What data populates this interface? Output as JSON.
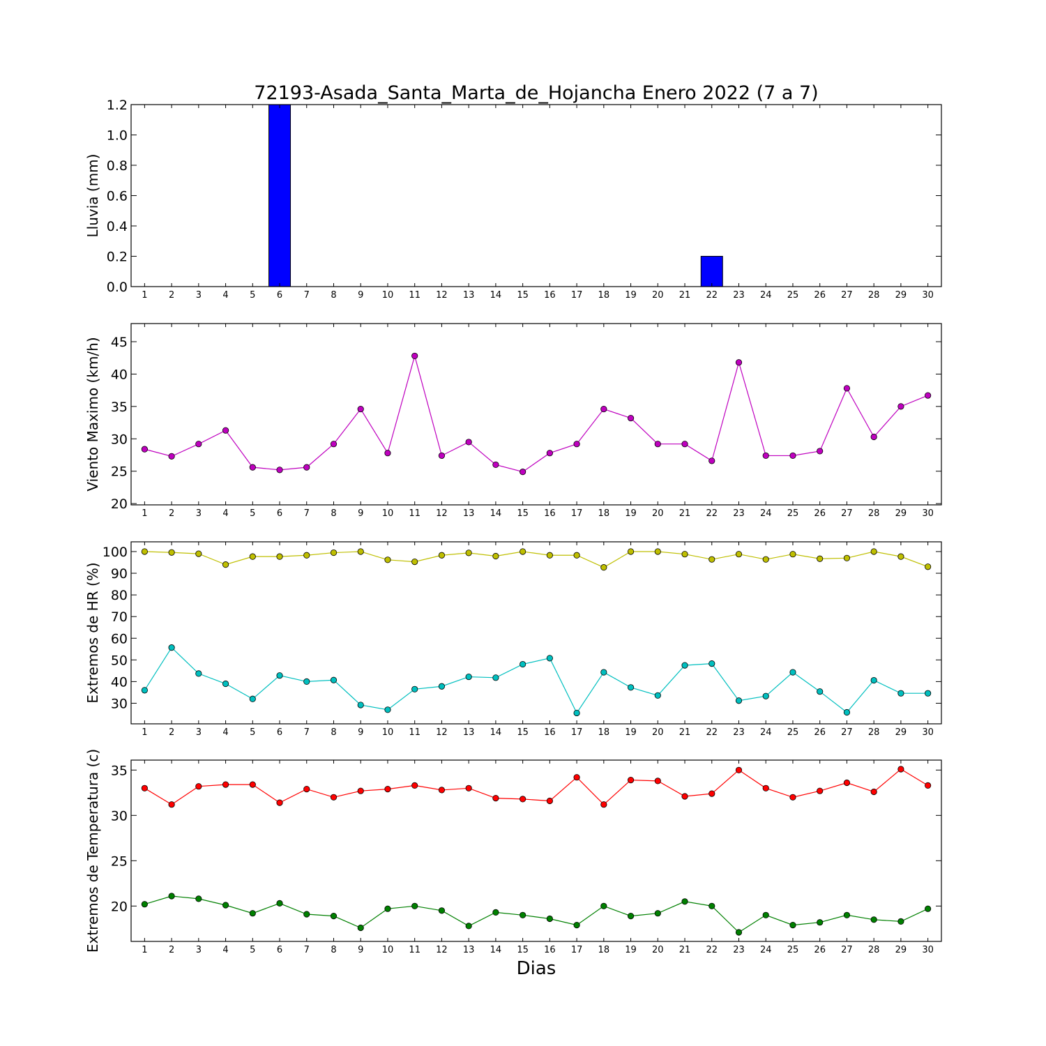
{
  "title": "72193-Asada_Santa_Marta_de_Hojancha Enero 2022  (7 a 7)",
  "xlabel": "Dias",
  "chart_data": [
    {
      "type": "bar",
      "ylabel": "Lluvia (mm)",
      "x": [
        1,
        2,
        3,
        4,
        5,
        6,
        7,
        8,
        9,
        10,
        11,
        12,
        13,
        14,
        15,
        16,
        17,
        18,
        19,
        20,
        21,
        22,
        23,
        24,
        25,
        26,
        27,
        28,
        29,
        30
      ],
      "xlim": [
        0.5,
        30.5
      ],
      "ylim": [
        0,
        1.2
      ],
      "yticks": [
        "0.0",
        "0.2",
        "0.4",
        "0.6",
        "0.8",
        "1.0",
        "1.2"
      ],
      "grid": false,
      "series": [
        {
          "color": "#0000ff",
          "values": [
            0,
            0,
            0,
            0,
            0,
            1.2,
            0,
            0,
            0,
            0,
            0,
            0,
            0,
            0,
            0,
            0,
            0,
            0,
            0,
            0,
            0,
            0.2,
            0,
            0,
            0,
            0,
            0,
            0,
            0,
            0
          ]
        }
      ]
    },
    {
      "type": "line",
      "ylabel": "Viento Maximo (km/h)",
      "x": [
        1,
        2,
        3,
        4,
        5,
        6,
        7,
        8,
        9,
        10,
        11,
        12,
        13,
        14,
        15,
        16,
        17,
        18,
        19,
        20,
        21,
        22,
        23,
        24,
        25,
        26,
        27,
        28,
        29,
        30
      ],
      "xlim": [
        0.5,
        30.5
      ],
      "ylim": [
        19.8,
        47.8
      ],
      "yticks": [
        "20",
        "25",
        "30",
        "35",
        "40",
        "45"
      ],
      "grid": false,
      "series": [
        {
          "color": "#bf00bf",
          "values": [
            28.4,
            27.3,
            29.2,
            31.3,
            25.6,
            25.2,
            25.6,
            29.2,
            34.6,
            27.8,
            42.8,
            27.4,
            29.5,
            26.0,
            24.9,
            27.8,
            29.2,
            34.6,
            33.2,
            29.2,
            29.2,
            26.6,
            41.8,
            27.4,
            27.4,
            28.1,
            37.8,
            30.3,
            35.0,
            36.7
          ]
        }
      ]
    },
    {
      "type": "line",
      "ylabel": "Extremos de HR (%)",
      "x": [
        1,
        2,
        3,
        4,
        5,
        6,
        7,
        8,
        9,
        10,
        11,
        12,
        13,
        14,
        15,
        16,
        17,
        18,
        19,
        20,
        21,
        22,
        23,
        24,
        25,
        26,
        27,
        28,
        29,
        30
      ],
      "xlim": [
        0.5,
        30.5
      ],
      "ylim": [
        20.5,
        104.5
      ],
      "yticks": [
        "30",
        "40",
        "50",
        "60",
        "70",
        "80",
        "90",
        "100"
      ],
      "grid": false,
      "series": [
        {
          "color": "#bfbf00",
          "values": [
            100,
            99.6,
            99,
            94,
            97.7,
            97.7,
            98.3,
            99.5,
            100,
            96.2,
            95.3,
            98.3,
            99.4,
            97.9,
            100,
            98.3,
            98.3,
            92.7,
            100,
            100,
            98.8,
            96.4,
            98.8,
            96.4,
            98.8,
            96.7,
            97,
            100,
            97.7,
            93
          ]
        },
        {
          "color": "#00bfbf",
          "values": [
            36,
            55.7,
            43.7,
            39,
            32,
            42.8,
            40,
            40.7,
            29.2,
            27,
            36.5,
            37.8,
            42.2,
            41.8,
            48,
            50.8,
            25.5,
            44.3,
            37.3,
            33.6,
            47.5,
            48.3,
            31.2,
            33.3,
            44.3,
            35.4,
            25.8,
            40.6,
            34.6,
            34.6
          ]
        }
      ]
    },
    {
      "type": "line",
      "ylabel": "Extremos de Temperatura (c)",
      "x": [
        1,
        2,
        3,
        4,
        5,
        6,
        7,
        8,
        9,
        10,
        11,
        12,
        13,
        14,
        15,
        16,
        17,
        18,
        19,
        20,
        21,
        22,
        23,
        24,
        25,
        26,
        27,
        28,
        29,
        30
      ],
      "xlim": [
        0.5,
        30.5
      ],
      "ylim": [
        16.1,
        36.1
      ],
      "yticks": [
        "20",
        "25",
        "30",
        "35"
      ],
      "grid": false,
      "series": [
        {
          "color": "#ff0000",
          "values": [
            33.0,
            31.2,
            33.2,
            33.4,
            33.4,
            31.4,
            32.9,
            32.0,
            32.7,
            32.9,
            33.3,
            32.8,
            33.0,
            31.9,
            31.8,
            31.6,
            34.2,
            31.2,
            33.9,
            33.8,
            32.1,
            32.4,
            35.0,
            33.0,
            32.0,
            32.7,
            33.6,
            32.6,
            35.1,
            33.3
          ]
        },
        {
          "color": "#008000",
          "values": [
            20.2,
            21.1,
            20.8,
            20.1,
            19.2,
            20.3,
            19.1,
            18.9,
            17.6,
            19.7,
            20.0,
            19.5,
            17.8,
            19.3,
            19.0,
            18.6,
            17.9,
            20.0,
            18.9,
            19.2,
            20.5,
            20.0,
            17.1,
            19.0,
            17.9,
            18.2,
            19.0,
            18.5,
            18.3,
            19.7
          ]
        }
      ]
    }
  ]
}
